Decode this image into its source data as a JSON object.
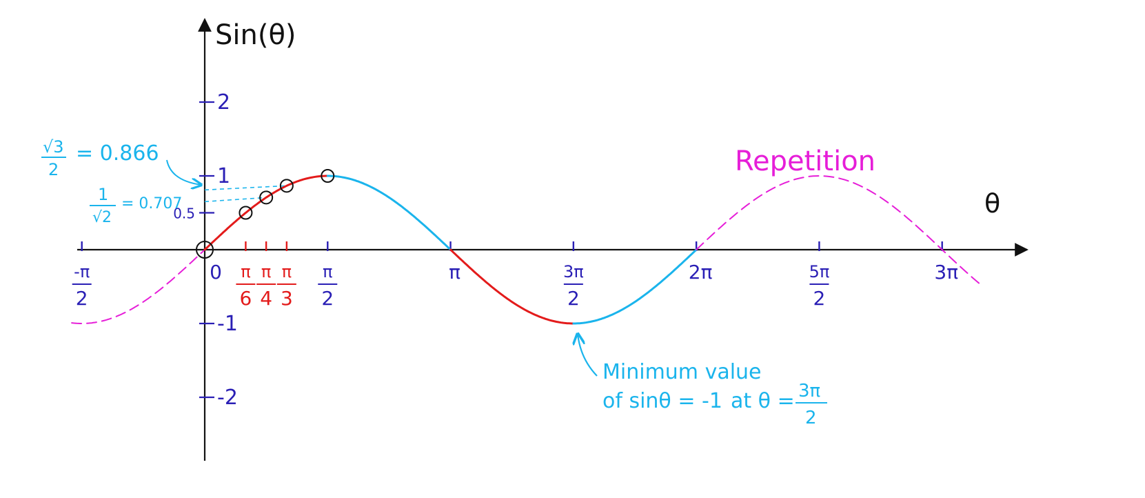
{
  "chart_data": {
    "type": "line",
    "title": "",
    "ylabel": "Sin(θ)",
    "xlabel": "θ",
    "xlim": [
      -1.7,
      9.9
    ],
    "ylim": [
      -2.8,
      2.8
    ],
    "y_ticks": [
      {
        "value": 2,
        "label": "2"
      },
      {
        "value": 1,
        "label": "1"
      },
      {
        "value": 0.5,
        "label": "0.5"
      },
      {
        "value": -1,
        "label": "-1"
      },
      {
        "value": -2,
        "label": "-2"
      }
    ],
    "x_ticks": [
      {
        "value": -1.5708,
        "num": "-π",
        "den": "2",
        "color": "#2a1fb5"
      },
      {
        "value": 0,
        "label": "0",
        "color": "#2a1fb5"
      },
      {
        "value": 0.5236,
        "num": "π",
        "den": "6",
        "color": "#e31b1b"
      },
      {
        "value": 0.7854,
        "num": "π",
        "den": "4",
        "color": "#e31b1b"
      },
      {
        "value": 1.0472,
        "num": "π",
        "den": "3",
        "color": "#e31b1b"
      },
      {
        "value": 1.5708,
        "num": "π",
        "den": "2",
        "color": "#2a1fb5"
      },
      {
        "value": 3.1416,
        "label": "π",
        "color": "#2a1fb5"
      },
      {
        "value": 4.7124,
        "num": "3π",
        "den": "2",
        "color": "#2a1fb5"
      },
      {
        "value": 6.2832,
        "label": "2π",
        "color": "#2a1fb5"
      },
      {
        "value": 7.854,
        "num": "5π",
        "den": "2",
        "color": "#2a1fb5"
      },
      {
        "value": 9.4248,
        "label": "3π",
        "color": "#2a1fb5"
      }
    ],
    "segments": [
      {
        "from": -1.7,
        "to": 0,
        "color": "#e61ed8",
        "style": "dashed"
      },
      {
        "from": 0,
        "to": 1.5708,
        "color": "#e31b1b",
        "style": "solid"
      },
      {
        "from": 1.5708,
        "to": 3.1416,
        "color": "#1ab4ec",
        "style": "solid"
      },
      {
        "from": 3.1416,
        "to": 4.7124,
        "color": "#e31b1b",
        "style": "solid"
      },
      {
        "from": 4.7124,
        "to": 6.2832,
        "color": "#1ab4ec",
        "style": "solid"
      },
      {
        "from": 6.2832,
        "to": 9.9,
        "color": "#e61ed8",
        "style": "dashed"
      }
    ],
    "marked_points": [
      {
        "x": 0,
        "y": 0
      },
      {
        "x": 0.5236,
        "y": 0.5
      },
      {
        "x": 0.7854,
        "y": 0.707
      },
      {
        "x": 1.0472,
        "y": 0.866
      },
      {
        "x": 1.5708,
        "y": 1
      }
    ],
    "reference_lines": [
      {
        "y": 0.866,
        "x_to": 1.0472
      },
      {
        "y": 0.707,
        "x_to": 0.7854
      }
    ],
    "annotations": {
      "sqrt3": {
        "num": "√3",
        "den": "2",
        "value": "= 0.866",
        "color": "#1ab4ec"
      },
      "inv_sqrt2": {
        "num": "1",
        "den": "√2",
        "value": "= 0.707",
        "color": "#1ab4ec"
      },
      "repetition": {
        "text": "Repetition",
        "color": "#e61ed8"
      },
      "minimum": {
        "line1": "Minimum value",
        "line2_a": "of sinθ = -1",
        "line2_b": "at θ =",
        "frac_num": "3π",
        "frac_den": "2",
        "color": "#1ab4ec"
      }
    },
    "axis_color": "#111111",
    "tick_color": "#2a1fb5"
  }
}
